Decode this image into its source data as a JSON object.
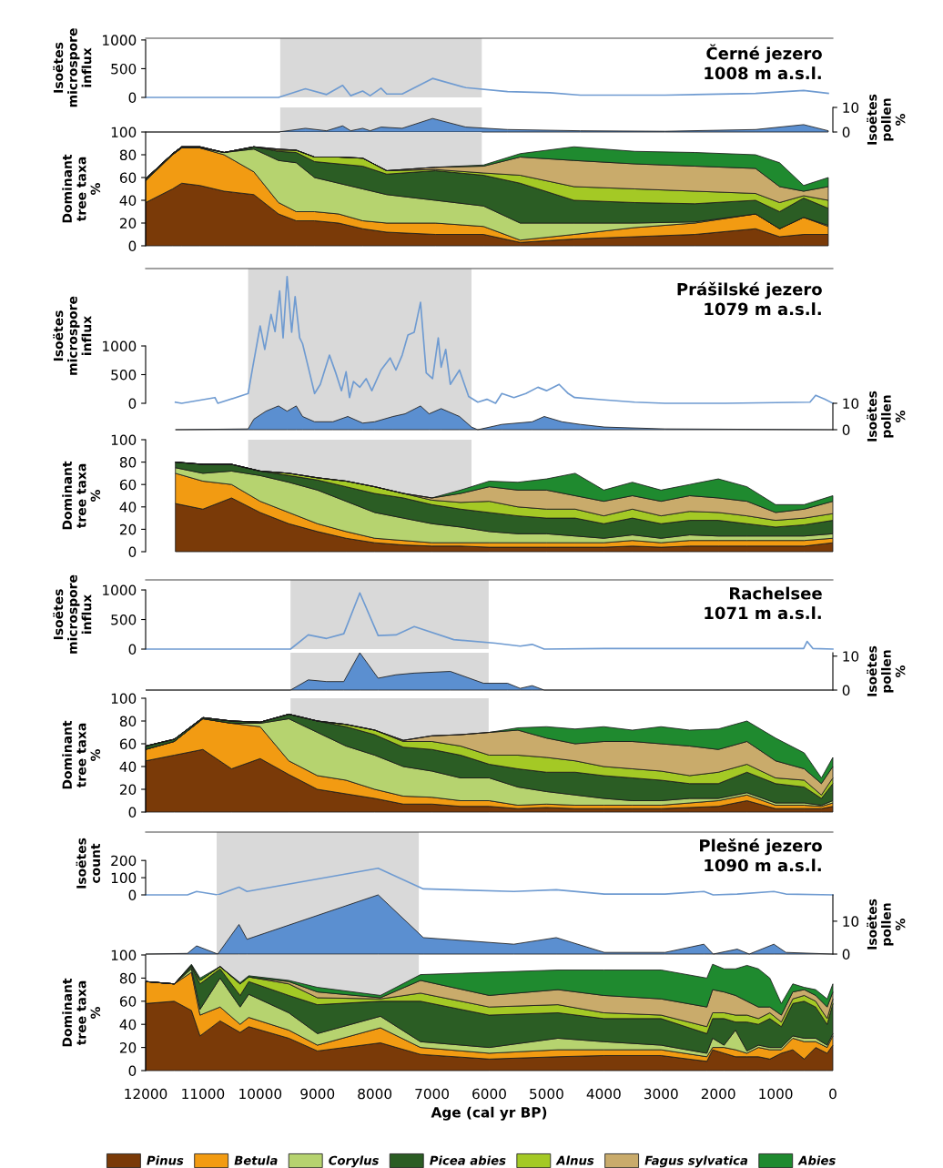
{
  "chart_data": [
    {
      "type": "line",
      "title": "Černé jezero\n1008 m a.s.l.",
      "ylabel": "Isoëtes\nmicrospore\ninflux",
      "xlim": [
        12000,
        0
      ],
      "ylim": [
        0,
        1030
      ],
      "yticks": [
        0,
        500,
        1000
      ],
      "tick_labels": "y",
      "bands": [
        {
          "axis": "x",
          "from": 9650,
          "to": 6130,
          "color": "#d9d9d9"
        }
      ],
      "x": [
        12000,
        9680,
        9210,
        8840,
        8560,
        8420,
        8210,
        8080,
        7890,
        7790,
        7520,
        6990,
        6410,
        5680,
        4940,
        4410,
        2930,
        1350,
        510,
        80
      ],
      "series": [
        {
          "color": "#6f9bd1",
          "values": [
            0,
            0,
            150,
            50,
            210,
            30,
            110,
            30,
            160,
            60,
            60,
            330,
            170,
            100,
            80,
            40,
            40,
            70,
            120,
            70
          ]
        }
      ]
    },
    {
      "type": "area",
      "y2label": "Isoëtes\npollen\n%",
      "xlim": [
        12000,
        0
      ],
      "y2lim": [
        0,
        10
      ],
      "y2ticks": [
        0,
        10
      ],
      "tick_labels": "y",
      "bands": [
        {
          "axis": "x",
          "from": 9650,
          "to": 6130,
          "color": "#d9d9d9"
        }
      ],
      "x": [
        12000,
        9680,
        9210,
        8840,
        8560,
        8420,
        8210,
        8080,
        7890,
        7520,
        6990,
        6410,
        5680,
        4410,
        2930,
        1350,
        510,
        80
      ],
      "series": [
        {
          "color": "#5b8fd0",
          "axis": "y2",
          "values": [
            0,
            0,
            1.5,
            0.5,
            2.5,
            0.5,
            1.5,
            0.5,
            2,
            1.5,
            5.5,
            2,
            1,
            0.5,
            0.3,
            1,
            3,
            0.5
          ]
        }
      ]
    },
    {
      "type": "area",
      "stacked": true,
      "ylabel": "Dominant\ntree taxa\n%",
      "xlim": [
        12000,
        0
      ],
      "ylim": [
        0,
        100
      ],
      "yticks": [
        0,
        20,
        40,
        60,
        80,
        100
      ],
      "tick_labels": "y",
      "bands": [
        {
          "axis": "x",
          "from": 9650,
          "to": 6130,
          "color": "#d9d9d9"
        }
      ],
      "x": [
        12000,
        11530,
        11370,
        11050,
        10630,
        10110,
        9680,
        9370,
        9050,
        8630,
        8210,
        7790,
        6940,
        6100,
        5460,
        4520,
        3460,
        2410,
        1350,
        930,
        510,
        80
      ],
      "series": [
        {
          "color": "#7a3a08",
          "values": [
            38,
            50,
            55,
            53,
            48,
            45,
            28,
            22,
            22,
            20,
            15,
            12,
            10,
            10,
            3,
            6,
            8,
            10,
            15,
            8,
            10,
            10
          ]
        },
        {
          "color": "#f29b12",
          "values": [
            19,
            30,
            31,
            33,
            32,
            20,
            10,
            8,
            8,
            8,
            7,
            8,
            10,
            7,
            2,
            4,
            8,
            10,
            13,
            7,
            15,
            7
          ]
        },
        {
          "color": "#b6d36f",
          "values": [
            1,
            0,
            0,
            0,
            2,
            20,
            37,
            43,
            30,
            27,
            28,
            25,
            20,
            18,
            15,
            10,
            4,
            1,
            0,
            0,
            0,
            1
          ]
        },
        {
          "color": "#2b5d24",
          "values": [
            1,
            1,
            1,
            1,
            0,
            2,
            8,
            9,
            14,
            17,
            20,
            18,
            26,
            27,
            35,
            20,
            18,
            16,
            12,
            15,
            17,
            15
          ]
        },
        {
          "color": "#a4c925",
          "values": [
            0,
            0,
            0,
            0,
            0,
            0,
            1,
            2,
            4,
            6,
            7,
            3,
            1,
            2,
            7,
            12,
            12,
            11,
            6,
            8,
            2,
            7
          ]
        },
        {
          "color": "#c9ab6b",
          "values": [
            0,
            0,
            0,
            0,
            0,
            0,
            1,
            0,
            0,
            0,
            0,
            0,
            2,
            6,
            16,
            23,
            22,
            22,
            22,
            14,
            4,
            12
          ]
        },
        {
          "color": "#1f8a2f",
          "values": [
            0,
            0,
            0,
            0,
            0,
            0,
            0,
            0,
            0,
            0,
            0,
            0,
            0,
            1,
            3,
            12,
            11,
            12,
            12,
            21,
            5,
            8
          ]
        }
      ]
    },
    {
      "type": "line",
      "title": "Prášilské jezero\n1079 m a.s.l.",
      "ylabel": "Isoëtes\nmicrospore\ninflux",
      "xlim": [
        12000,
        0
      ],
      "ylim": [
        0,
        2350
      ],
      "yticks": [
        0,
        500,
        1000
      ],
      "tick_labels": "y",
      "bands": [
        {
          "axis": "x",
          "from": 10210,
          "to": 6310,
          "color": "#d9d9d9"
        }
      ],
      "x": [
        11480,
        11370,
        10790,
        10740,
        10210,
        10130,
        10000,
        9920,
        9810,
        9740,
        9660,
        9600,
        9530,
        9450,
        9390,
        9310,
        9260,
        9160,
        9050,
        8950,
        8790,
        8680,
        8580,
        8500,
        8440,
        8370,
        8260,
        8150,
        8050,
        7890,
        7730,
        7630,
        7520,
        7420,
        7310,
        7200,
        7100,
        6990,
        6890,
        6840,
        6760,
        6680,
        6520,
        6360,
        6200,
        6040,
        5890,
        5780,
        5570,
        5360,
        5150,
        5000,
        4780,
        4620,
        4510,
        3990,
        3460,
        2930,
        1880,
        400,
        300,
        140,
        0
      ],
      "series": [
        {
          "color": "#6f9bd1",
          "values": [
            20,
            0,
            100,
            0,
            170,
            630,
            1350,
            940,
            1550,
            1250,
            1960,
            1140,
            2210,
            1240,
            1860,
            1140,
            1040,
            630,
            170,
            330,
            840,
            530,
            220,
            550,
            100,
            380,
            280,
            430,
            220,
            580,
            790,
            580,
            840,
            1190,
            1240,
            1760,
            530,
            430,
            1140,
            630,
            940,
            330,
            580,
            120,
            20,
            70,
            0,
            170,
            100,
            170,
            280,
            220,
            330,
            170,
            100,
            60,
            20,
            0,
            0,
            20,
            140,
            70,
            0
          ]
        }
      ]
    },
    {
      "type": "area",
      "y2label": "Isoëtes\npollen\n%",
      "xlim": [
        12000,
        0
      ],
      "y2lim": [
        0,
        10
      ],
      "y2ticks": [
        0,
        10
      ],
      "tick_labels": "y",
      "bands": [
        {
          "axis": "x",
          "from": 10210,
          "to": 6310,
          "color": "#d9d9d9"
        }
      ],
      "x": [
        11480,
        10210,
        10110,
        9900,
        9680,
        9530,
        9370,
        9260,
        9050,
        8730,
        8470,
        8210,
        8000,
        7680,
        7470,
        7200,
        7050,
        6840,
        6520,
        6310,
        6200,
        5780,
        5250,
        5040,
        4730,
        4410,
        3990,
        2930,
        0
      ],
      "series": [
        {
          "color": "#5b8fd0",
          "axis": "y2",
          "values": [
            0,
            0.3,
            4,
            7,
            9,
            7,
            9,
            5,
            3,
            3,
            5,
            2.5,
            3,
            5,
            6,
            9,
            6,
            8,
            5,
            1,
            0,
            2,
            3,
            5,
            3,
            2,
            1,
            0.3,
            0
          ]
        }
      ]
    },
    {
      "type": "area",
      "stacked": true,
      "ylabel": "Dominant\ntree taxa\n%",
      "xlim": [
        12000,
        0
      ],
      "ylim": [
        0,
        100
      ],
      "yticks": [
        0,
        20,
        40,
        60,
        80,
        100
      ],
      "tick_labels": "y",
      "bands": [
        {
          "axis": "x",
          "from": 10210,
          "to": 6310,
          "color": "#d9d9d9"
        }
      ],
      "x": [
        11480,
        11000,
        10500,
        10000,
        9500,
        9000,
        8500,
        8000,
        7500,
        7000,
        6500,
        6000,
        5500,
        5000,
        4500,
        4000,
        3500,
        3000,
        2500,
        2000,
        1500,
        1000,
        500,
        0
      ],
      "series": [
        {
          "color": "#7a3a08",
          "values": [
            43,
            38,
            48,
            35,
            25,
            18,
            12,
            8,
            6,
            5,
            5,
            4,
            4,
            4,
            4,
            4,
            5,
            4,
            5,
            5,
            5,
            5,
            5,
            8
          ]
        },
        {
          "color": "#f29b12",
          "values": [
            27,
            25,
            12,
            10,
            10,
            7,
            6,
            4,
            4,
            3,
            3,
            4,
            4,
            4,
            4,
            4,
            5,
            4,
            5,
            5,
            5,
            5,
            5,
            4
          ]
        },
        {
          "color": "#b6d36f",
          "values": [
            5,
            7,
            12,
            23,
            27,
            30,
            27,
            23,
            20,
            17,
            14,
            10,
            8,
            8,
            6,
            4,
            5,
            4,
            5,
            4,
            4,
            4,
            4,
            4
          ]
        },
        {
          "color": "#2b5d24",
          "values": [
            5,
            8,
            6,
            4,
            6,
            9,
            13,
            17,
            18,
            17,
            16,
            17,
            16,
            14,
            16,
            13,
            15,
            13,
            13,
            14,
            11,
            8,
            10,
            12
          ]
        },
        {
          "color": "#a4c925",
          "values": [
            0,
            0,
            0,
            0,
            2,
            2,
            5,
            6,
            4,
            4,
            6,
            10,
            8,
            8,
            8,
            7,
            8,
            7,
            8,
            7,
            7,
            6,
            6,
            6
          ]
        },
        {
          "color": "#c9ab6b",
          "values": [
            0,
            0,
            0,
            0,
            0,
            0,
            0,
            0,
            0,
            2,
            8,
            13,
            15,
            17,
            12,
            13,
            12,
            13,
            14,
            13,
            13,
            7,
            8,
            11
          ]
        },
        {
          "color": "#1f8a2f",
          "values": [
            0,
            0,
            0,
            0,
            0,
            0,
            0,
            0,
            0,
            0,
            3,
            5,
            7,
            10,
            20,
            10,
            12,
            10,
            10,
            17,
            13,
            7,
            4,
            5
          ]
        }
      ]
    },
    {
      "type": "line",
      "title": "Rachelsee\n1071 m a.s.l.",
      "ylabel": "Isoëtes\nmicrospore\ninflux",
      "xlim": [
        12000,
        0
      ],
      "ylim": [
        0,
        1170
      ],
      "yticks": [
        0,
        500,
        1000
      ],
      "tick_labels": "y",
      "bands": [
        {
          "axis": "x",
          "from": 9470,
          "to": 6010,
          "color": "#d9d9d9"
        }
      ],
      "x": [
        12000,
        9470,
        9160,
        8840,
        8540,
        8260,
        7940,
        7630,
        7310,
        6620,
        5890,
        5460,
        5250,
        5040,
        3990,
        1880,
        510,
        450,
        350,
        0
      ],
      "series": [
        {
          "color": "#6f9bd1",
          "values": [
            0,
            0,
            240,
            180,
            260,
            950,
            230,
            240,
            380,
            160,
            100,
            50,
            80,
            0,
            10,
            10,
            10,
            130,
            10,
            0
          ]
        }
      ]
    },
    {
      "type": "area",
      "y2label": "Isoëtes\npollen\n%",
      "xlim": [
        12000,
        0
      ],
      "y2lim": [
        0,
        11
      ],
      "y2ticks": [
        0,
        10
      ],
      "tick_labels": "y",
      "bands": [
        {
          "axis": "x",
          "from": 9470,
          "to": 6010,
          "color": "#d9d9d9"
        }
      ],
      "x": [
        12000,
        9470,
        9160,
        8840,
        8540,
        8260,
        7940,
        7630,
        7310,
        6680,
        6100,
        5680,
        5460,
        5250,
        5040,
        0
      ],
      "series": [
        {
          "color": "#5b8fd0",
          "axis": "y2",
          "values": [
            0,
            0,
            3,
            2.5,
            2.5,
            11,
            3.5,
            4.5,
            5,
            5.5,
            2,
            2,
            0.5,
            1.3,
            0,
            0
          ]
        }
      ]
    },
    {
      "type": "area",
      "stacked": true,
      "ylabel": "Dominant\ntree taxa\n%",
      "xlim": [
        12000,
        0
      ],
      "ylim": [
        0,
        100
      ],
      "yticks": [
        0,
        20,
        40,
        60,
        80,
        100
      ],
      "tick_labels": "y",
      "bands": [
        {
          "axis": "x",
          "from": 9470,
          "to": 6010,
          "color": "#d9d9d9"
        }
      ],
      "x": [
        12000,
        11500,
        11000,
        10500,
        10000,
        9500,
        9000,
        8500,
        8000,
        7500,
        7000,
        6500,
        6000,
        5500,
        5000,
        4500,
        4000,
        3500,
        3000,
        2500,
        2000,
        1500,
        1000,
        500,
        200,
        0
      ],
      "series": [
        {
          "color": "#7a3a08",
          "values": [
            45,
            50,
            55,
            38,
            47,
            33,
            20,
            16,
            12,
            7,
            7,
            5,
            5,
            3,
            4,
            3,
            3,
            3,
            3,
            4,
            5,
            10,
            3,
            3,
            3,
            5
          ]
        },
        {
          "color": "#f29b12",
          "values": [
            10,
            12,
            27,
            40,
            28,
            12,
            12,
            12,
            8,
            7,
            6,
            5,
            5,
            3,
            3,
            3,
            3,
            3,
            3,
            4,
            5,
            5,
            3,
            3,
            2,
            3
          ]
        },
        {
          "color": "#b6d36f",
          "values": [
            0,
            0,
            0,
            0,
            3,
            37,
            38,
            30,
            30,
            26,
            23,
            20,
            20,
            16,
            11,
            9,
            6,
            4,
            4,
            4,
            2,
            2,
            2,
            2,
            1,
            2
          ]
        },
        {
          "color": "#2b5d24",
          "values": [
            3,
            2,
            1,
            2,
            1,
            4,
            10,
            17,
            18,
            17,
            19,
            20,
            12,
            16,
            17,
            20,
            20,
            20,
            18,
            13,
            13,
            18,
            17,
            14,
            6,
            15
          ]
        },
        {
          "color": "#a4c925",
          "values": [
            0,
            0,
            0,
            0,
            0,
            0,
            0,
            2,
            4,
            5,
            7,
            8,
            8,
            12,
            13,
            10,
            8,
            8,
            8,
            7,
            10,
            7,
            5,
            6,
            3,
            5
          ]
        },
        {
          "color": "#c9ab6b",
          "values": [
            0,
            0,
            0,
            0,
            0,
            0,
            0,
            0,
            0,
            1,
            5,
            10,
            20,
            22,
            17,
            15,
            22,
            24,
            24,
            26,
            20,
            20,
            15,
            10,
            10,
            10
          ]
        },
        {
          "color": "#1f8a2f",
          "values": [
            0,
            0,
            0,
            0,
            0,
            0,
            0,
            0,
            0,
            0,
            0,
            0,
            0,
            2,
            10,
            13,
            13,
            10,
            15,
            14,
            18,
            18,
            20,
            14,
            5,
            8
          ]
        }
      ]
    },
    {
      "type": "line",
      "title": "Plešné jezero\n1090 m a.s.l.",
      "ylabel": "Isoëtes\ncount",
      "xlim": [
        12000,
        0
      ],
      "ylim": [
        0,
        365
      ],
      "yticks": [
        0,
        100,
        200
      ],
      "tick_labels": "y",
      "bands": [
        {
          "axis": "x",
          "from": 10760,
          "to": 7230,
          "color": "#d9d9d9"
        }
      ],
      "x": [
        12000,
        11270,
        11110,
        10740,
        10370,
        10230,
        7940,
        7150,
        5570,
        4830,
        3990,
        2930,
        2250,
        2090,
        1670,
        1030,
        820,
        0
      ],
      "series": [
        {
          "color": "#6f9bd1",
          "values": [
            0,
            0,
            20,
            0,
            45,
            20,
            155,
            35,
            20,
            30,
            5,
            5,
            20,
            0,
            5,
            20,
            5,
            0
          ]
        }
      ]
    },
    {
      "type": "area",
      "y2label": "Isoëtes\npollen\n%",
      "xlim": [
        12000,
        0
      ],
      "y2lim": [
        0,
        18
      ],
      "y2ticks": [
        0,
        10
      ],
      "tick_labels": "y",
      "bands": [
        {
          "axis": "x",
          "from": 10760,
          "to": 7230,
          "color": "#d9d9d9"
        }
      ],
      "x": [
        12000,
        11270,
        11110,
        10740,
        10370,
        10230,
        7940,
        7150,
        5570,
        4830,
        3990,
        2930,
        2250,
        2090,
        1670,
        1460,
        1030,
        820,
        0
      ],
      "series": [
        {
          "color": "#5b8fd0",
          "axis": "y2",
          "values": [
            0,
            0.2,
            2.5,
            0,
            9,
            4.5,
            18,
            5,
            3,
            5,
            0.5,
            0.5,
            3,
            0,
            1.5,
            0,
            3,
            0.5,
            0
          ]
        }
      ]
    },
    {
      "type": "area",
      "stacked": true,
      "ylabel": "Dominant\ntree taxa\n%",
      "xlabel": "Age (cal yr BP)",
      "xlim": [
        12000,
        0
      ],
      "xticks": [
        12000,
        11000,
        10000,
        9000,
        8000,
        7000,
        6000,
        5000,
        4000,
        3000,
        2000,
        1000,
        0
      ],
      "ylim": [
        0,
        100
      ],
      "yticks": [
        0,
        20,
        40,
        60,
        80,
        100
      ],
      "legend": "bottom",
      "bands": [
        {
          "axis": "x",
          "from": 10760,
          "to": 7230,
          "color": "#d9d9d9"
        }
      ],
      "x": [
        12000,
        11500,
        11200,
        11050,
        10700,
        10350,
        10200,
        9500,
        9000,
        7900,
        7200,
        6000,
        4800,
        4000,
        3000,
        2200,
        2100,
        1900,
        1700,
        1500,
        1300,
        1100,
        900,
        700,
        500,
        300,
        100,
        0
      ],
      "series": [
        {
          "name": "Pinus",
          "color": "#7a3a08",
          "values": [
            58,
            60,
            52,
            30,
            43,
            33,
            38,
            28,
            17,
            24,
            14,
            10,
            12,
            13,
            13,
            8,
            18,
            15,
            12,
            12,
            12,
            10,
            15,
            18,
            10,
            20,
            15,
            22
          ]
        },
        {
          "name": "Betula",
          "color": "#f29b12",
          "values": [
            19,
            15,
            33,
            18,
            12,
            7,
            8,
            7,
            5,
            13,
            6,
            5,
            6,
            5,
            5,
            4,
            2,
            5,
            6,
            3,
            8,
            8,
            3,
            10,
            15,
            5,
            5,
            8
          ]
        },
        {
          "name": "Corylus",
          "color": "#b6d36f",
          "values": [
            0,
            0,
            3,
            5,
            25,
            15,
            20,
            15,
            10,
            10,
            5,
            5,
            10,
            7,
            4,
            3,
            8,
            2,
            17,
            2,
            2,
            2,
            2,
            2,
            3,
            3,
            2,
            2
          ]
        },
        {
          "name": "Picea abies",
          "color": "#2b5d24",
          "values": [
            0,
            0,
            2,
            22,
            8,
            10,
            11,
            15,
            25,
            13,
            35,
            28,
            22,
            20,
            23,
            17,
            17,
            23,
            7,
            25,
            18,
            25,
            18,
            28,
            32,
            27,
            18,
            26
          ]
        },
        {
          "name": "Alnus",
          "color": "#a4c925",
          "values": [
            0,
            0,
            1,
            3,
            2,
            10,
            4,
            10,
            6,
            2,
            7,
            7,
            7,
            5,
            3,
            6,
            5,
            5,
            6,
            6,
            5,
            5,
            4,
            4,
            5,
            5,
            5,
            4
          ]
        },
        {
          "name": "Fagus sylvatica",
          "color": "#c9ab6b",
          "values": [
            0,
            0,
            0,
            0,
            0,
            0,
            0,
            2,
            5,
            1,
            11,
            10,
            13,
            15,
            14,
            17,
            20,
            18,
            17,
            12,
            10,
            5,
            6,
            6,
            5,
            5,
            10,
            6
          ]
        },
        {
          "name": "Abies",
          "color": "#1f8a2f",
          "values": [
            0,
            0,
            1,
            2,
            0,
            1,
            1,
            1,
            4,
            2,
            5,
            20,
            17,
            22,
            25,
            25,
            22,
            20,
            23,
            31,
            33,
            25,
            10,
            7,
            2,
            5,
            7,
            7
          ]
        }
      ]
    }
  ]
}
